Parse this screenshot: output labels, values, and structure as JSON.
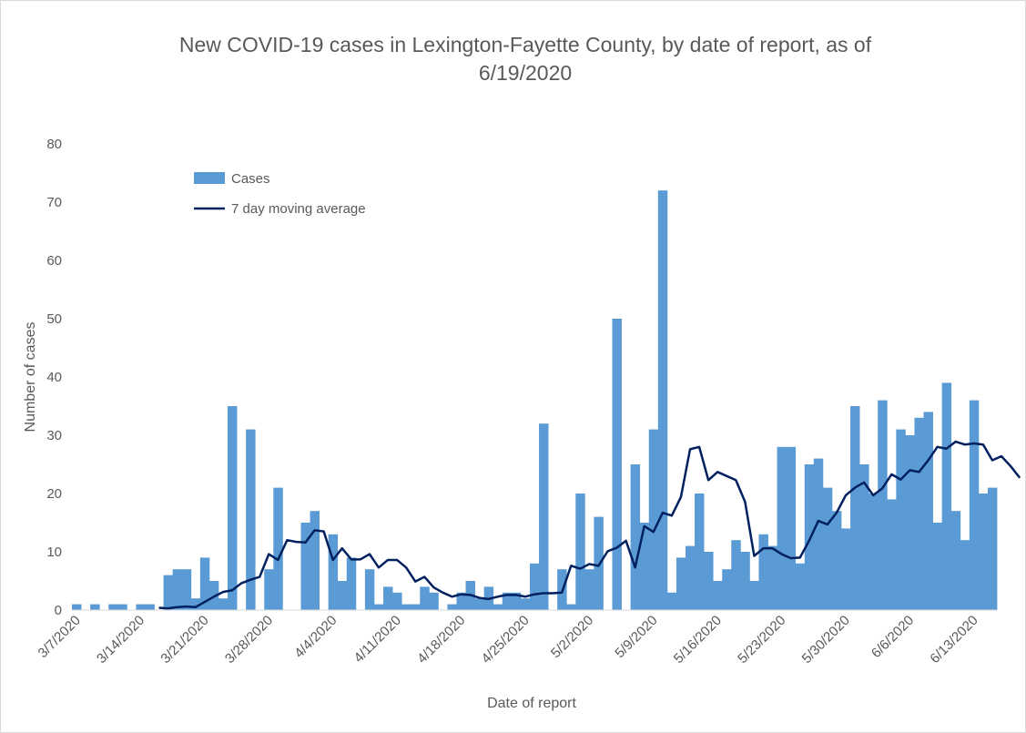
{
  "chart_data": {
    "type": "bar+line",
    "title_lines": [
      "New COVID-19 cases in Lexington-Fayette County, by date of report, as of",
      "6/19/2020"
    ],
    "xlabel": "Date of report",
    "ylabel": "Number of cases",
    "ylim": [
      0,
      80
    ],
    "yticks": [
      0,
      10,
      20,
      30,
      40,
      50,
      60,
      70,
      80
    ],
    "xtick_labels": [
      "3/7/2020",
      "3/14/2020",
      "3/21/2020",
      "3/28/2020",
      "4/4/2020",
      "4/11/2020",
      "4/18/2020",
      "4/25/2020",
      "5/2/2020",
      "5/9/2020",
      "5/16/2020",
      "5/23/2020",
      "5/30/2020",
      "6/6/2020",
      "6/13/2020"
    ],
    "start_date": "3/7/2020",
    "legend_placement": "top-left",
    "series": [
      {
        "name": "Cases",
        "type": "bar",
        "color": "#5b9bd5",
        "values": [
          1,
          0,
          1,
          0,
          1,
          1,
          0,
          1,
          1,
          0,
          6,
          7,
          7,
          2,
          9,
          5,
          2,
          35,
          0,
          31,
          0,
          7,
          21,
          0,
          0,
          15,
          17,
          0,
          13,
          5,
          9,
          0,
          7,
          1,
          4,
          3,
          1,
          1,
          4,
          3,
          0,
          1,
          3,
          5,
          2,
          4,
          1,
          3,
          3,
          2,
          8,
          32,
          0,
          7,
          1,
          20,
          7,
          16,
          0,
          50,
          0,
          25,
          15,
          31,
          72,
          3,
          9,
          11,
          20,
          10,
          5,
          7,
          12,
          10,
          5,
          13,
          11,
          28,
          28,
          8,
          25,
          26,
          21,
          17,
          14,
          35,
          25,
          20,
          36,
          19,
          31,
          30,
          33,
          34,
          15,
          39,
          17,
          12,
          36,
          20,
          21
        ]
      },
      {
        "name": "7 day moving average",
        "type": "line",
        "color": "#002060",
        "start_index": 9,
        "values": [
          0.4,
          0.3,
          0.5,
          0.6,
          0.5,
          1.4,
          2.3,
          3.1,
          3.4,
          4.6,
          5.2,
          5.7,
          9.6,
          8.6,
          12.0,
          11.7,
          11.6,
          13.7,
          13.5,
          8.6,
          10.6,
          8.7,
          8.7,
          9.6,
          7.3,
          8.6,
          8.6,
          7.3,
          4.9,
          5.7,
          3.9,
          3.0,
          2.3,
          2.7,
          2.6,
          2.1,
          1.9,
          2.3,
          2.6,
          2.6,
          2.3,
          2.7,
          2.9,
          2.9,
          3.0,
          7.6,
          7.1,
          7.9,
          7.6,
          10.1,
          10.7,
          11.9,
          7.3,
          14.4,
          13.4,
          16.7,
          16.2,
          19.4,
          27.6,
          28.0,
          22.3,
          23.7,
          23.0,
          22.3,
          18.6,
          9.3,
          10.6,
          10.6,
          9.6,
          8.9,
          9.0,
          11.9,
          15.3,
          14.7,
          16.7,
          19.7,
          21.0,
          21.9,
          19.7,
          20.9,
          23.3,
          22.4,
          24.0,
          23.7,
          25.7,
          28.0,
          27.7,
          28.9,
          28.4,
          28.6,
          28.4,
          25.7,
          26.4,
          24.7,
          22.7
        ]
      }
    ]
  }
}
